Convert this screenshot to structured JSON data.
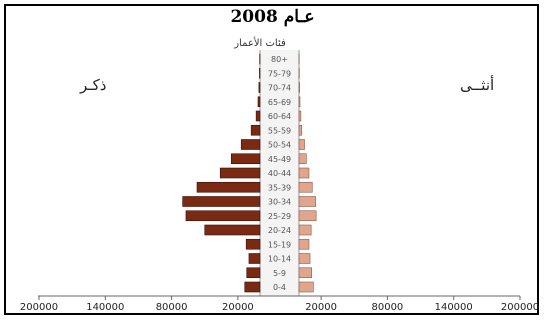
{
  "chart_data": {
    "type": "bar",
    "title": "عـام 2008",
    "center_header": "فئات الأعمار",
    "series": [
      {
        "name": "ذكـر",
        "side": "left",
        "color": "#7a2a12",
        "values": [
          13800,
          12000,
          10000,
          12500,
          50000,
          67000,
          70000,
          57000,
          36000,
          26000,
          17000,
          8000,
          3500,
          1800,
          1000,
          500,
          300
        ]
      },
      {
        "name": "أنثــى",
        "side": "right",
        "color": "#dfa58d",
        "values": [
          13000,
          11500,
          10000,
          9000,
          11000,
          15500,
          15000,
          12000,
          9000,
          6600,
          5000,
          2500,
          1700,
          900,
          500,
          300,
          200
        ]
      }
    ],
    "categories": [
      "0-4",
      "5-9",
      "10-14",
      "15-19",
      "20-24",
      "25-29",
      "30-34",
      "35-39",
      "40-44",
      "45-49",
      "50-54",
      "55-59",
      "60-64",
      "65-69",
      "70-74",
      "75-79",
      "80+"
    ],
    "x_ticks_left": [
      "200000",
      "140000",
      "80000",
      "20000"
    ],
    "x_ticks_right": [
      "20000",
      "80000",
      "140000",
      "200000"
    ],
    "xlim": [
      0,
      230000
    ],
    "grid": false,
    "legend": "in-plot labels"
  }
}
